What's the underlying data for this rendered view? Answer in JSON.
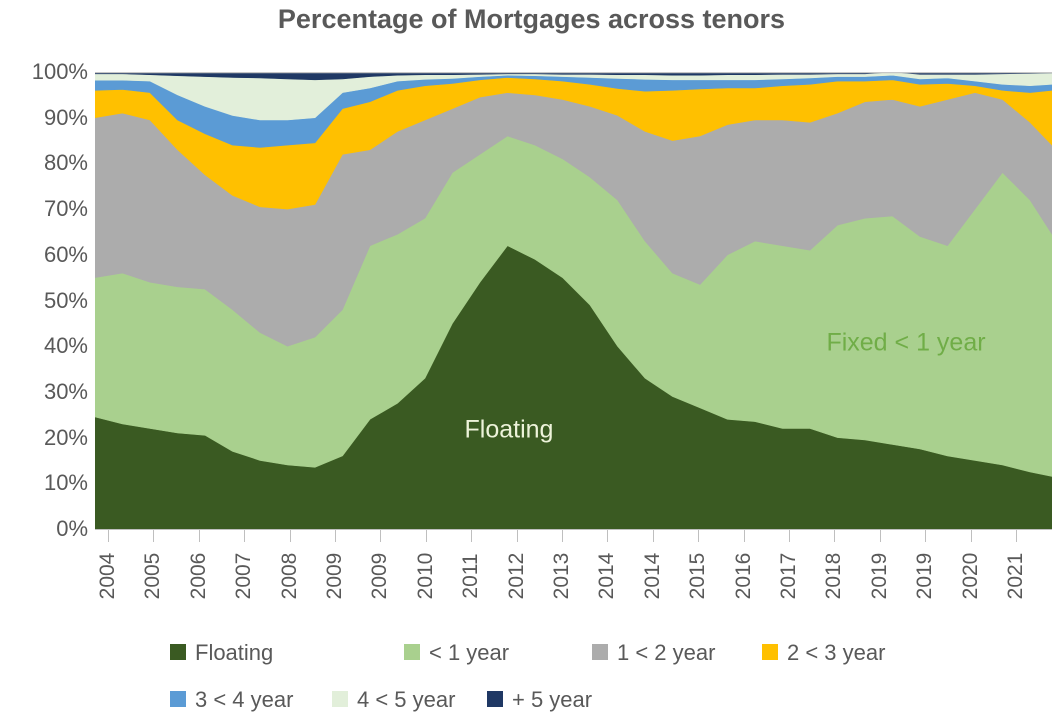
{
  "title": "Percentage of Mortgages across tenors",
  "chart_data": {
    "type": "area",
    "stacked": true,
    "unit": "percent",
    "ylim": [
      0,
      100
    ],
    "grid": false,
    "legend_position": "bottom",
    "x": [
      2004.5,
      2005,
      2005.5,
      2006,
      2006.5,
      2007,
      2007.5,
      2008,
      2008.5,
      2009,
      2009.5,
      2010,
      2010.5,
      2011,
      2011.5,
      2012,
      2012.5,
      2013,
      2013.5,
      2014,
      2014.5,
      2015,
      2015.5,
      2016,
      2016.5,
      2017,
      2017.5,
      2018,
      2018.5,
      2019,
      2019.5,
      2020,
      2020.5,
      2021,
      2021.5,
      2021.9
    ],
    "x_tick_labels": [
      "2004",
      "2005",
      "2006",
      "2007",
      "2008",
      "2009",
      "2009",
      "2010",
      "2011",
      "2012",
      "2013",
      "2014",
      "2014",
      "2015",
      "2016",
      "2017",
      "2018",
      "2019",
      "2019",
      "2020",
      "2021"
    ],
    "y_tick_labels": [
      "100%",
      "90%",
      "80%",
      "70%",
      "60%",
      "50%",
      "40%",
      "30%",
      "20%",
      "10%",
      "0%"
    ],
    "series": [
      {
        "name": "Floating",
        "color": "#3A5A22",
        "values": [
          24.5,
          23,
          22,
          21,
          20.5,
          17,
          15,
          14,
          13.5,
          16,
          24,
          27.5,
          33,
          45,
          54,
          62,
          59,
          55,
          49,
          40,
          33,
          29,
          26.5,
          24,
          23.5,
          22,
          22,
          20,
          19.5,
          18.5,
          17.5,
          16,
          15,
          14,
          12.5,
          11.5
        ]
      },
      {
        "name": "< 1 year",
        "color": "#A9D08E",
        "values": [
          30.5,
          33,
          32,
          32,
          32,
          31,
          28,
          26,
          28.5,
          32,
          38,
          37,
          35,
          33,
          28,
          24,
          25,
          26,
          28,
          32,
          30,
          27,
          27,
          36,
          39.5,
          40,
          39,
          46.5,
          48.5,
          50,
          46.5,
          46,
          55,
          64,
          59.5,
          53
        ]
      },
      {
        "name": "1 <  2 year",
        "color": "#ACACAC",
        "values": [
          35,
          35,
          35.5,
          30,
          25,
          25,
          27.5,
          30,
          29,
          34,
          21,
          22.5,
          21.5,
          14,
          12.5,
          9.5,
          11,
          13,
          15.5,
          18.5,
          24,
          29,
          32.5,
          28.5,
          26.5,
          27.5,
          28,
          24.5,
          25.5,
          25.5,
          28.5,
          32,
          25.5,
          16,
          17,
          19.5
        ]
      },
      {
        "name": "2 <  3 year",
        "color": "#FFC000",
        "values": [
          6,
          5.2,
          6,
          6.5,
          9,
          11,
          13,
          14,
          13.5,
          10,
          10.5,
          9,
          7.5,
          5.5,
          3.8,
          3.3,
          3.5,
          4,
          4.8,
          5.9,
          8.8,
          11,
          10.3,
          8,
          7,
          7.5,
          8.3,
          7,
          4.5,
          4.3,
          4.8,
          3.5,
          1.5,
          2,
          6.5,
          12
        ]
      },
      {
        "name": "3 <  4 year",
        "color": "#5B9BD5",
        "values": [
          2.2,
          2,
          2.5,
          5.5,
          6,
          6.5,
          6,
          5.5,
          5.5,
          3.5,
          3,
          2,
          1.4,
          1.1,
          0.7,
          0.5,
          0.7,
          1,
          1.5,
          2.2,
          2.6,
          2.3,
          2,
          1.8,
          1.8,
          1.5,
          1.4,
          1,
          1,
          1,
          1.2,
          1.2,
          1,
          1.3,
          1.5,
          1.3
        ]
      },
      {
        "name": "4 <  5 year",
        "color": "#E2EFDA",
        "values": [
          1.4,
          1.4,
          1.4,
          4.2,
          6.5,
          8.3,
          9.2,
          9,
          8.3,
          3,
          2.5,
          1.3,
          1,
          0.8,
          0.5,
          0.3,
          0.4,
          0.5,
          0.7,
          0.8,
          1,
          1,
          1,
          1.1,
          1.1,
          1,
          0.8,
          0.6,
          0.6,
          0.7,
          1,
          0.8,
          1.5,
          2.3,
          2.7,
          2.5
        ]
      },
      {
        "name": "+ 5  year",
        "color": "#1F3864",
        "values": [
          0.4,
          0.4,
          0.6,
          0.8,
          1,
          1.2,
          1.3,
          1.5,
          1.7,
          1.5,
          1,
          0.7,
          0.6,
          0.6,
          0.5,
          0.4,
          0.4,
          0.5,
          0.5,
          0.6,
          0.6,
          0.7,
          0.7,
          0.6,
          0.6,
          0.5,
          0.5,
          0.4,
          0.4,
          0.5,
          0.5,
          0.5,
          0.5,
          0.4,
          0.3,
          0.2
        ]
      }
    ],
    "annotations": [
      {
        "text": "Floating",
        "color": "#EDF3DA"
      },
      {
        "text": "Fixed < 1 year",
        "color": "#70AD47"
      }
    ],
    "axis_color": "#BFBFBF",
    "plot_border_top_color": "#C6C6C6"
  }
}
